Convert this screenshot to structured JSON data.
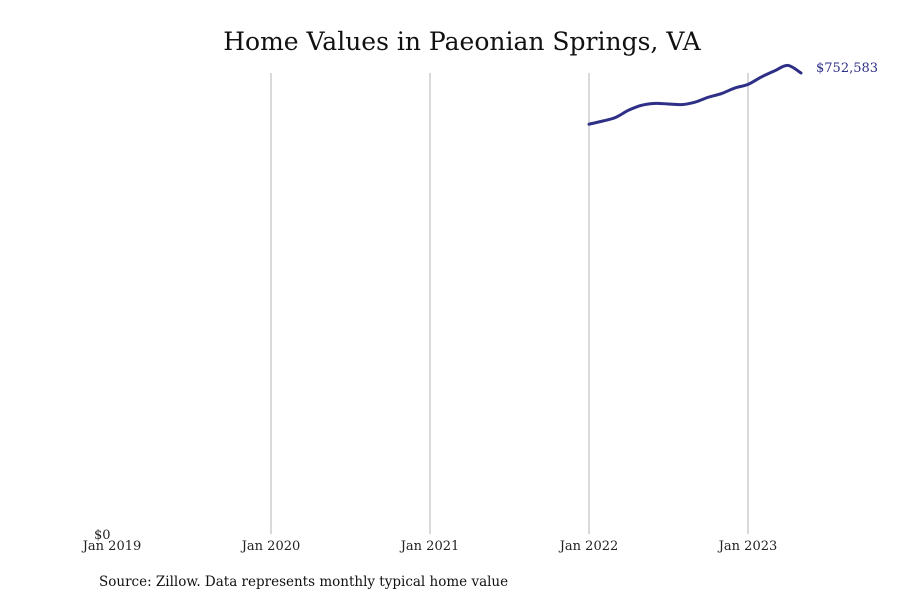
{
  "chart_data": {
    "type": "line",
    "title": "Home Values in Paeonian Springs, VA",
    "source": "Source: Zillow. Data represents monthly typical home value",
    "xlabel": "",
    "ylabel": "",
    "x_ticks": [
      "Jan 2019",
      "Jan 2020",
      "Jan 2021",
      "Jan 2022",
      "Jan 2023"
    ],
    "y_ticks": [
      "$0"
    ],
    "xlim": [
      "2019-01",
      "2023-12"
    ],
    "ylim": [
      0,
      752583
    ],
    "grid": "vertical",
    "line_color": "#2e2f86",
    "end_label": "$752,583",
    "series": [
      {
        "x": [
          "2022-01",
          "2022-02",
          "2022-03",
          "2022-04",
          "2022-05",
          "2022-06",
          "2022-07",
          "2022-08",
          "2022-09",
          "2022-10",
          "2022-11",
          "2022-12",
          "2023-01",
          "2023-02",
          "2023-03",
          "2023-04",
          "2023-05"
        ],
        "values": [
          669000,
          674000,
          680000,
          692000,
          700000,
          703000,
          702000,
          701000,
          705000,
          713000,
          719000,
          728000,
          734000,
          746000,
          756000,
          765000,
          752583
        ]
      }
    ]
  }
}
